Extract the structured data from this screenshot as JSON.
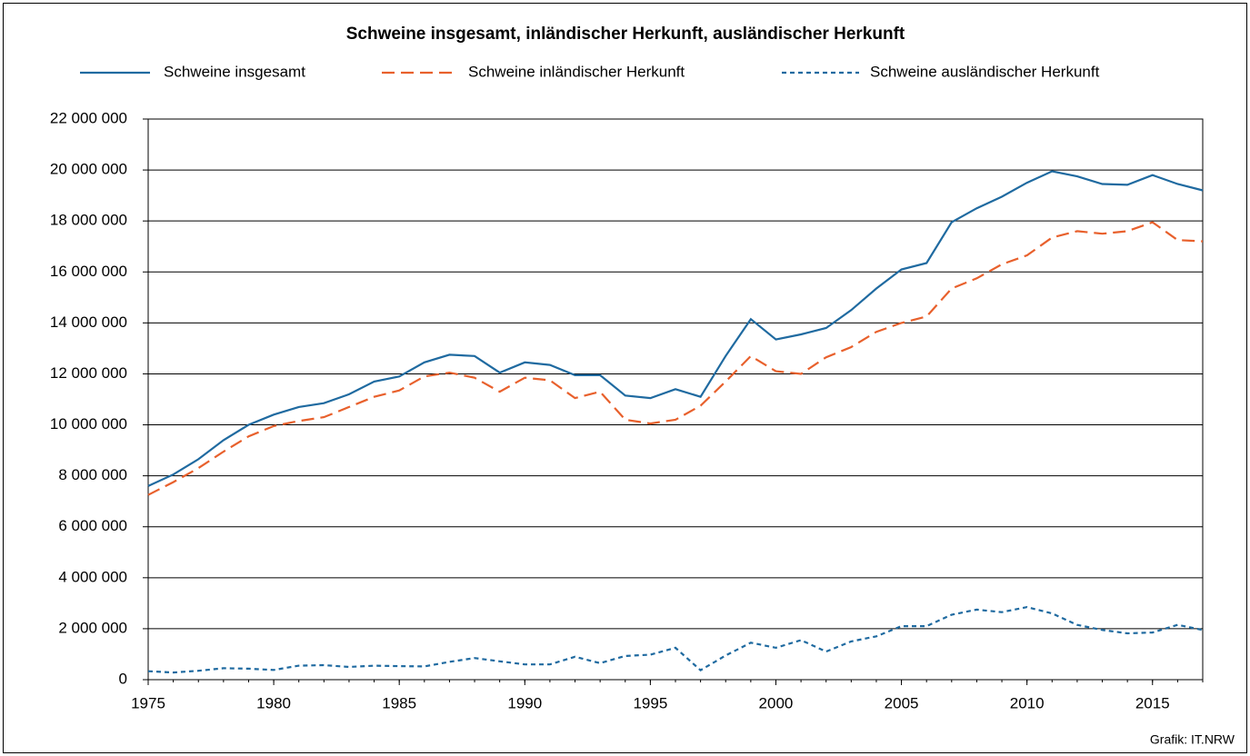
{
  "chart_data": {
    "type": "line",
    "title": "Schweine insgesamt, inländischer Herkunft, ausländischer Herkunft",
    "source": "Grafik: IT.NRW",
    "x": [
      1975,
      1976,
      1977,
      1978,
      1979,
      1980,
      1981,
      1982,
      1983,
      1984,
      1985,
      1986,
      1987,
      1988,
      1989,
      1990,
      1991,
      1992,
      1993,
      1994,
      1995,
      1996,
      1997,
      1998,
      1999,
      2000,
      2001,
      2002,
      2003,
      2004,
      2005,
      2006,
      2007,
      2008,
      2009,
      2010,
      2011,
      2012,
      2013,
      2014,
      2015,
      2016,
      2017
    ],
    "series": [
      {
        "name": "Schweine insgesamt",
        "color": "#1f6aa0",
        "linestyle": "solid",
        "values": [
          7600000,
          8050000,
          8650000,
          9400000,
          10000000,
          10400000,
          10700000,
          10850000,
          11200000,
          11700000,
          11900000,
          12450000,
          12750000,
          12700000,
          12050000,
          12450000,
          12350000,
          11950000,
          11950000,
          11150000,
          11050000,
          11400000,
          11100000,
          12700000,
          14150000,
          13350000,
          13550000,
          13800000,
          14500000,
          15350000,
          16100000,
          16350000,
          17950000,
          18500000,
          18950000,
          19500000,
          19950000,
          19750000,
          19450000,
          19420000,
          19800000,
          19450000,
          19200000
        ]
      },
      {
        "name": "Schweine inländischer Herkunft",
        "color": "#e8602c",
        "linestyle": "dashed",
        "values": [
          7250000,
          7750000,
          8300000,
          8950000,
          9550000,
          9950000,
          10150000,
          10300000,
          10700000,
          11100000,
          11350000,
          11900000,
          12050000,
          11850000,
          11300000,
          11850000,
          11750000,
          11050000,
          11300000,
          10200000,
          10050000,
          10200000,
          10750000,
          11700000,
          12700000,
          12100000,
          12000000,
          12650000,
          13050000,
          13650000,
          14000000,
          14250000,
          15350000,
          15750000,
          16300000,
          16650000,
          17350000,
          17600000,
          17500000,
          17600000,
          17950000,
          17250000,
          17200000
        ]
      },
      {
        "name": "Schweine ausländischer Herkunft",
        "color": "#1f6aa0",
        "linestyle": "dotted",
        "values": [
          330000,
          280000,
          350000,
          450000,
          430000,
          380000,
          550000,
          570000,
          500000,
          550000,
          530000,
          520000,
          700000,
          850000,
          720000,
          600000,
          600000,
          900000,
          650000,
          930000,
          980000,
          1250000,
          370000,
          950000,
          1450000,
          1250000,
          1550000,
          1100000,
          1500000,
          1700000,
          2100000,
          2100000,
          2550000,
          2750000,
          2650000,
          2850000,
          2600000,
          2150000,
          1950000,
          1820000,
          1850000,
          2150000,
          1950000
        ]
      }
    ],
    "xlim": [
      1975,
      2017
    ],
    "xticks": [
      1975,
      1980,
      1985,
      1990,
      1995,
      2000,
      2005,
      2010,
      2015
    ],
    "ylim": [
      0,
      22000000
    ],
    "yticks": [
      0,
      {
        "value": 2000000,
        "label": "2 000 000"
      },
      {
        "value": 4000000,
        "label": "4 000 000"
      },
      {
        "value": 6000000,
        "label": "6 000 000"
      },
      {
        "value": 8000000,
        "label": "8 000 000"
      },
      {
        "value": 10000000,
        "label": "10 000 000"
      },
      {
        "value": 12000000,
        "label": "12 000 000"
      },
      {
        "value": 14000000,
        "label": "14 000 000"
      },
      {
        "value": 16000000,
        "label": "16 000 000"
      },
      {
        "value": 18000000,
        "label": "18 000 000"
      },
      {
        "value": 20000000,
        "label": "20 000 000"
      },
      {
        "value": 22000000,
        "label": "22 000 000"
      }
    ],
    "grid": true,
    "legend": "top"
  }
}
